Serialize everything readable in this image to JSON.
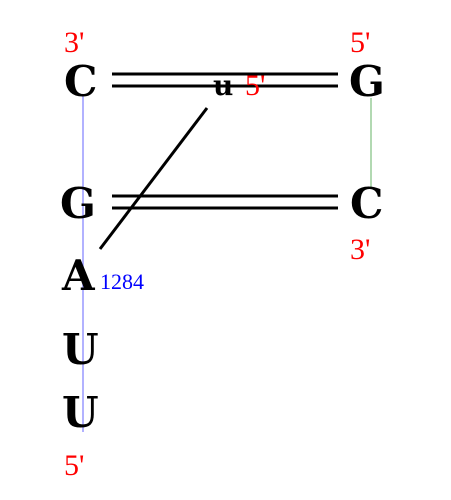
{
  "colors": {
    "end_label": "#ff0000",
    "number_label": "#0000ff",
    "left_backbone": "#9999ff",
    "right_backbone": "#99cc99",
    "pair_line": "#000000"
  },
  "left_strand": {
    "top_end": "3'",
    "bottom_end": "5'",
    "bases": [
      "C",
      "G",
      "A",
      "U",
      "U"
    ],
    "residue_number": "1284"
  },
  "right_strand": {
    "top_end": "5'",
    "bottom_end": "3'",
    "bases": [
      "G",
      "C"
    ]
  },
  "small_strand": {
    "base": "u",
    "end": "5'"
  }
}
